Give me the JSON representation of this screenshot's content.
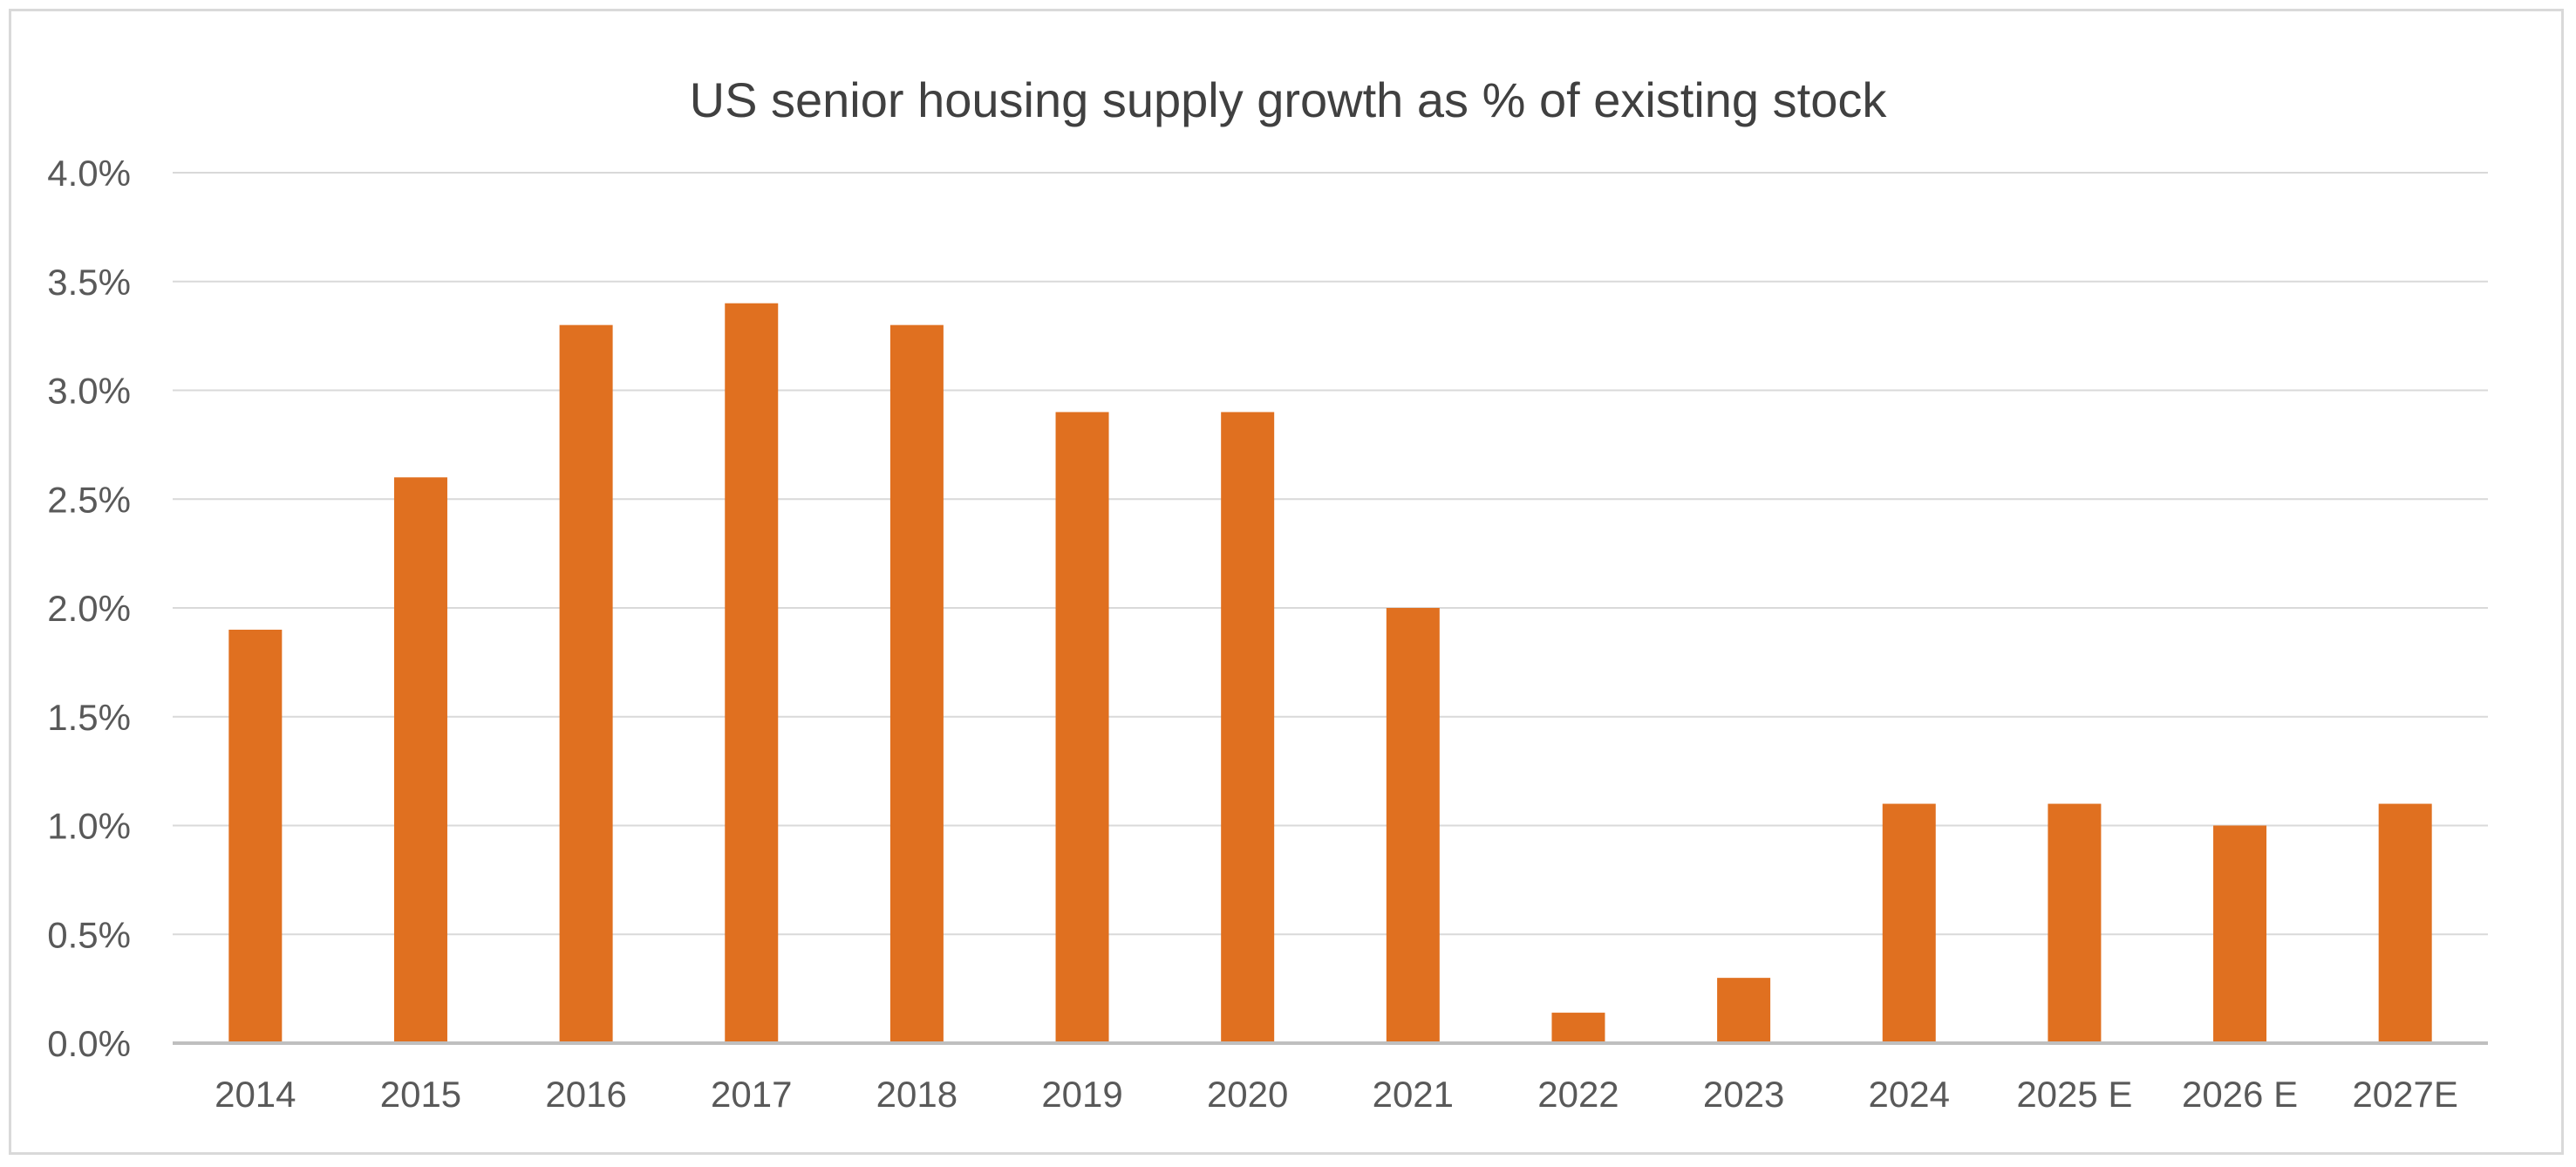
{
  "chart_data": {
    "type": "bar",
    "title": "US senior housing supply growth as % of existing stock",
    "xlabel": "",
    "ylabel": "",
    "categories": [
      "2014",
      "2015",
      "2016",
      "2017",
      "2018",
      "2019",
      "2020",
      "2021",
      "2022",
      "2023",
      "2024",
      "2025 E",
      "2026 E",
      "2027E"
    ],
    "series": [
      {
        "values": [
          1.9,
          2.6,
          3.3,
          3.4,
          3.3,
          2.9,
          2.9,
          2.0,
          0.14,
          0.3,
          1.1,
          1.1,
          1.0,
          1.1
        ]
      }
    ],
    "ylim": [
      0,
      4.0
    ],
    "yticks": [
      "0.0%",
      "0.5%",
      "1.0%",
      "1.5%",
      "2.0%",
      "2.5%",
      "3.0%",
      "3.5%",
      "4.0%"
    ],
    "grid": true,
    "legend": "none",
    "colors": {
      "bar": "#e07020",
      "gridline": "#d9d9d9",
      "axis": "#bfbfbf",
      "text": "#595959",
      "title": "#404040"
    }
  }
}
